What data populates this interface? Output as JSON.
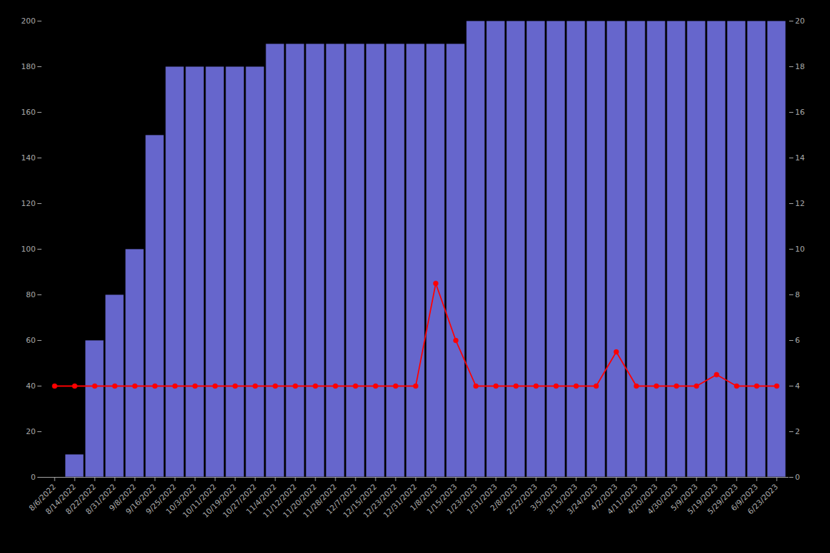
{
  "chart_data": {
    "type": "bar",
    "categories": [
      "8/6/2022",
      "8/14/2022",
      "8/22/2022",
      "8/31/2022",
      "9/8/2022",
      "9/16/2022",
      "9/25/2022",
      "10/3/2022",
      "10/11/2022",
      "10/19/2022",
      "10/27/2022",
      "11/4/2022",
      "11/12/2022",
      "11/20/2022",
      "11/28/2022",
      "12/7/2022",
      "12/15/2022",
      "12/23/2022",
      "12/31/2022",
      "1/8/2023",
      "1/15/2023",
      "1/23/2023",
      "1/31/2023",
      "2/8/2023",
      "2/22/2023",
      "3/5/2023",
      "3/15/2023",
      "3/24/2023",
      "4/2/2023",
      "4/11/2023",
      "4/20/2023",
      "4/30/2023",
      "5/9/2023",
      "5/19/2023",
      "5/29/2023",
      "6/9/2023",
      "6/23/2023"
    ],
    "series": [
      {
        "type": "bar",
        "color": "#6666cc",
        "values": [
          0,
          10,
          60,
          80,
          100,
          150,
          180,
          180,
          180,
          180,
          180,
          190,
          190,
          190,
          190,
          190,
          190,
          190,
          190,
          190,
          190,
          200,
          200,
          200,
          200,
          200,
          200,
          200,
          200,
          200,
          200,
          200,
          200,
          200,
          200,
          200,
          200
        ]
      },
      {
        "type": "line",
        "color": "#ff0000",
        "marker": "o",
        "values": [
          40,
          40,
          40,
          40,
          40,
          40,
          40,
          40,
          40,
          40,
          40,
          40,
          40,
          40,
          40,
          40,
          40,
          40,
          40,
          85,
          60,
          40,
          40,
          40,
          40,
          40,
          40,
          40,
          55,
          40,
          40,
          40,
          40,
          45,
          40,
          40,
          40
        ]
      }
    ],
    "ylim": [
      0,
      200
    ],
    "yticks": [
      0,
      20,
      40,
      60,
      80,
      100,
      120,
      140,
      160,
      180,
      200
    ],
    "y2lim": [
      0,
      20
    ],
    "y2ticks": [
      0,
      2,
      4,
      6,
      8,
      10,
      12,
      14,
      16,
      18,
      20
    ],
    "grid": false
  }
}
